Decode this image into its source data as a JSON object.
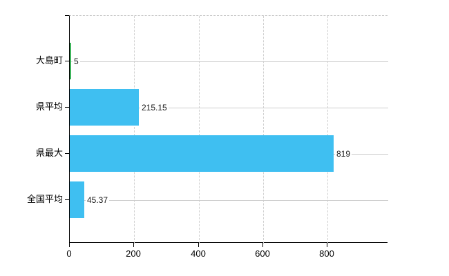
{
  "chart_data": {
    "type": "bar",
    "orientation": "horizontal",
    "title": "",
    "categories": [
      "大島町",
      "県平均",
      "県最大",
      "全国平均"
    ],
    "values": [
      5,
      215.15,
      819,
      45.37
    ],
    "value_labels": [
      "5",
      "215.15",
      "819",
      "45.37"
    ],
    "bar_colors": [
      "#3CB45A",
      "#3FBFF1",
      "#3FBFF1",
      "#3FBFF1"
    ],
    "x_ticks": [
      0,
      200,
      400,
      600,
      800
    ],
    "x_tick_labels": [
      "0",
      "200",
      "400",
      "600",
      "800"
    ],
    "xlim": [
      0,
      988
    ],
    "grid": true,
    "legend": false,
    "axis_color": "#000000",
    "grid_color": "#cccccc"
  }
}
